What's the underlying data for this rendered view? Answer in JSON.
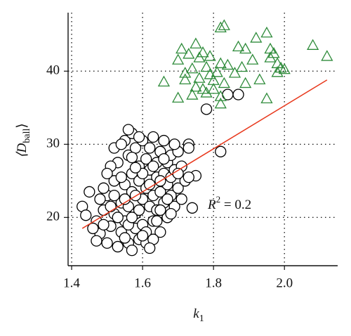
{
  "chart_data": {
    "type": "scatter",
    "xlabel": {
      "text": "k",
      "subscript": "1"
    },
    "ylabel": {
      "text": "⟨D",
      "subscript": "ball",
      "suffix": "⟩"
    },
    "annotation": {
      "text": "R",
      "superscript": "2",
      "suffix": " = 0.2"
    },
    "xlim": [
      1.39,
      2.15
    ],
    "ylim": [
      13.4,
      48
    ],
    "xticks": [
      1.4,
      1.6,
      1.8,
      {
        "value": 2.0,
        "label": "2.0"
      }
    ],
    "yticks": [
      20,
      30,
      40
    ],
    "grid": true,
    "series": [
      {
        "marker": "circle",
        "color": "#000000",
        "x": [
          1.47,
          1.48,
          1.49,
          1.5,
          1.5,
          1.51,
          1.52,
          1.52,
          1.53,
          1.53,
          1.54,
          1.54,
          1.55,
          1.55,
          1.55,
          1.56,
          1.56,
          1.56,
          1.57,
          1.57,
          1.57,
          1.57,
          1.58,
          1.58,
          1.58,
          1.59,
          1.59,
          1.59,
          1.6,
          1.6,
          1.6,
          1.61,
          1.61,
          1.61,
          1.62,
          1.62,
          1.62,
          1.63,
          1.63,
          1.63,
          1.64,
          1.64,
          1.64,
          1.65,
          1.65,
          1.65,
          1.66,
          1.66,
          1.66,
          1.67,
          1.67,
          1.67,
          1.68,
          1.68,
          1.68,
          1.69,
          1.69,
          1.7,
          1.7,
          1.71,
          1.71,
          1.72,
          1.51,
          1.52,
          1.54,
          1.55,
          1.53,
          1.49,
          1.48,
          1.46,
          1.47,
          1.5,
          1.56,
          1.58,
          1.59,
          1.6,
          1.61,
          1.62,
          1.63,
          1.64,
          1.65,
          1.57,
          1.54,
          1.56,
          1.6,
          1.62,
          1.58,
          1.66,
          1.68,
          1.69,
          1.59,
          1.52,
          1.51,
          1.49,
          1.55,
          1.57,
          1.63,
          1.65,
          1.67,
          1.7,
          1.74,
          1.78,
          1.82,
          1.87,
          1.84,
          1.73,
          1.73,
          1.75,
          1.73,
          1.43,
          1.44,
          1.45
        ],
        "values": [
          19.5,
          17.8,
          21,
          16.5,
          23,
          18.8,
          25,
          20.5,
          16,
          27.5,
          22,
          18,
          30.5,
          24.5,
          19.5,
          16.5,
          28.5,
          21.5,
          31.5,
          26,
          23.5,
          15.5,
          18.5,
          29.5,
          20.5,
          25,
          17,
          27,
          22.5,
          30.5,
          19,
          24,
          28,
          16.5,
          21.5,
          26.5,
          29.5,
          23,
          19.5,
          31,
          25.5,
          27.5,
          21,
          23.5,
          29,
          18,
          26,
          22,
          30.5,
          24.5,
          20,
          27.5,
          23,
          28.5,
          25.5,
          21.5,
          26.5,
          24,
          29,
          22.5,
          27,
          25,
          27,
          29.5,
          25.5,
          17.2,
          20,
          24,
          22.5,
          18.5,
          16.8,
          26,
          19,
          23,
          21,
          26,
          18,
          24.5,
          17,
          19.5,
          21,
          28.2,
          30,
          32,
          17.5,
          15.8,
          26.8,
          28,
          20.5,
          30,
          31,
          23,
          21.5,
          19,
          22.5,
          20,
          27,
          25,
          22.5,
          26,
          21.3,
          34.8,
          29,
          36.8,
          36.8,
          30,
          29.5,
          25.7,
          25.5,
          21.5,
          20.3,
          23.5
        ]
      },
      {
        "marker": "triangle",
        "color": "#2e8b3a",
        "x": [
          1.7,
          1.66,
          1.7,
          1.71,
          1.73,
          1.74,
          1.72,
          1.75,
          1.76,
          1.77,
          1.78,
          1.79,
          1.8,
          1.81,
          1.77,
          1.75,
          1.78,
          1.8,
          1.82,
          1.82,
          1.76,
          1.74,
          1.82,
          1.83,
          1.82,
          1.84,
          1.86,
          1.88,
          1.89,
          1.91,
          1.92,
          1.95,
          1.93,
          1.96,
          1.96,
          1.97,
          1.98,
          1.99,
          1.98,
          2.0,
          1.95,
          1.89,
          2.08,
          2.12,
          1.83,
          1.87,
          1.79,
          1.72
        ],
        "values": [
          36.3,
          38.5,
          41.5,
          43,
          42.3,
          40.3,
          38.8,
          43.7,
          41.8,
          42.5,
          40.5,
          39.5,
          38.7,
          39.8,
          37.5,
          37.8,
          37,
          37.5,
          36.5,
          35.5,
          39,
          36.7,
          45.9,
          46.2,
          41,
          40.8,
          39.7,
          40.5,
          43,
          41.5,
          44.5,
          45.2,
          38.8,
          41.8,
          43,
          42.4,
          41,
          40.4,
          39.8,
          40.2,
          36.2,
          38.3,
          43.5,
          42,
          38.3,
          43.3,
          42,
          39.7
        ]
      }
    ],
    "fit_line": {
      "x": [
        1.43,
        2.12
      ],
      "values": [
        18.5,
        38.8
      ],
      "color": "#e8381c"
    }
  }
}
